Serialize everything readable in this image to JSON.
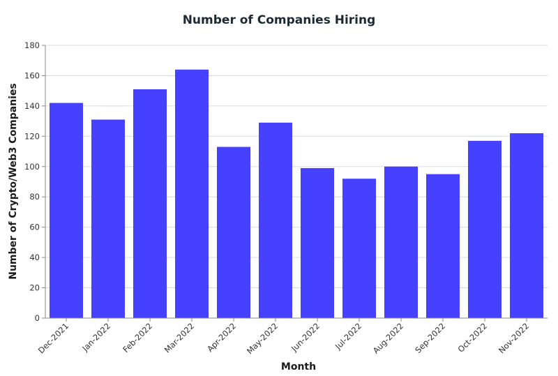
{
  "chart_data": {
    "type": "bar",
    "title": "Number of Companies Hiring",
    "xlabel": "Month",
    "ylabel": "Number of Crypto/Web3 Companies",
    "categories": [
      "Dec-2021",
      "Jan-2022",
      "Feb-2022",
      "Mar-2022",
      "Apr-2022",
      "May-2022",
      "Jun-2022",
      "Jul-2022",
      "Aug-2022",
      "Sep-2022",
      "Oct-2022",
      "Nov-2022"
    ],
    "values": [
      142,
      131,
      151,
      164,
      113,
      129,
      99,
      92,
      100,
      95,
      117,
      122
    ],
    "ylim": [
      0,
      180
    ],
    "yticks": [
      0,
      20,
      40,
      60,
      80,
      100,
      120,
      140,
      160,
      180
    ],
    "grid": true,
    "bar_color": "#4640ff"
  }
}
